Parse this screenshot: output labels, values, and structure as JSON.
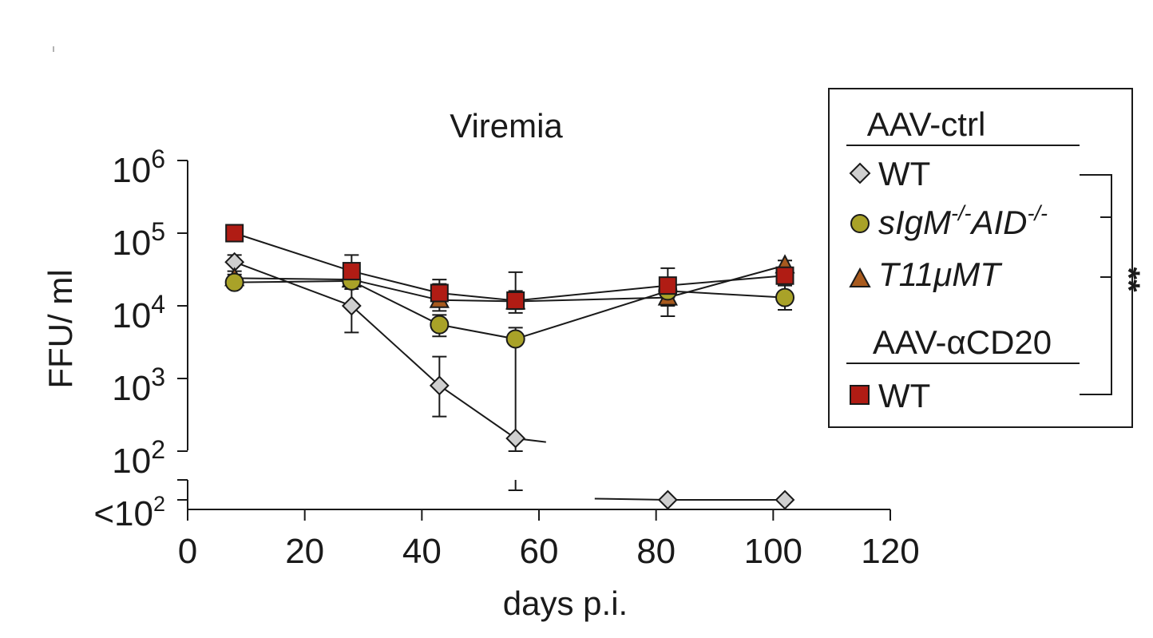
{
  "chart_data": {
    "type": "line",
    "title": "Viremia",
    "xlabel": "days p.i.",
    "ylabel": "FFU/ ml",
    "x_ticks": [
      "0",
      "20",
      "40",
      "60",
      "80",
      "100",
      "120"
    ],
    "xlim": [
      0,
      120
    ],
    "ylim_log10": [
      2,
      6
    ],
    "y_ticks": [
      {
        "value": 1000000,
        "base": "10",
        "exp": "6"
      },
      {
        "value": 100000,
        "base": "10",
        "exp": "5"
      },
      {
        "value": 10000,
        "base": "10",
        "exp": "4"
      },
      {
        "value": 1000,
        "base": "10",
        "exp": "3"
      },
      {
        "value": 100,
        "base": "10",
        "exp": "2"
      }
    ],
    "below_detection_label": {
      "prefix": "<10",
      "exp": "2"
    },
    "legend": {
      "group1_title": "AAV-ctrl",
      "group2_title": "AAV-αCD20",
      "significance": "**"
    },
    "series": [
      {
        "key": "wt_ctrl",
        "name": "WT",
        "group": "AAV-ctrl",
        "marker": "diamond",
        "color": "#cfcfcf",
        "x": [
          8,
          28,
          43,
          56,
          82,
          102
        ],
        "y": [
          40000,
          10000,
          800,
          150,
          "<100",
          "<100"
        ],
        "err_low": [
          30000,
          4300,
          300,
          "<100",
          "<100",
          null
        ],
        "err_high": [
          50000,
          17000,
          2000,
          null,
          "<100",
          null
        ]
      },
      {
        "key": "sigm_aid",
        "name_base": "sIgM",
        "name_sup1": "-/-",
        "name_mid": "AID",
        "name_sup2": "-/-",
        "group": "AAV-ctrl",
        "marker": "circle",
        "color": "#a9a228",
        "x": [
          8,
          28,
          43,
          56,
          82,
          102
        ],
        "y": [
          21000,
          22000,
          5500,
          3500,
          16000,
          13000
        ],
        "err_low": [
          20000,
          19000,
          3800,
          100,
          13000,
          8800
        ],
        "err_high": [
          23000,
          26000,
          7500,
          5000,
          19000,
          19000
        ]
      },
      {
        "key": "t11umt",
        "name": "T11μMT",
        "group": "AAV-ctrl",
        "marker": "triangle",
        "color": "#a85a1e",
        "x": [
          8,
          28,
          43,
          56,
          82,
          102
        ],
        "y": [
          24000,
          23000,
          12000,
          11500,
          13000,
          36000
        ],
        "err_low": [
          20000,
          19000,
          8500,
          9000,
          10000,
          30000
        ],
        "err_high": [
          27000,
          30000,
          20000,
          16000,
          16000,
          42000
        ]
      },
      {
        "key": "wt_cd20",
        "name": "WT",
        "group": "AAV-αCD20",
        "marker": "square",
        "color": "#b01c14",
        "x": [
          8,
          28,
          43,
          56,
          82,
          102
        ],
        "y": [
          100000,
          30000,
          15000,
          11800,
          19000,
          26000
        ],
        "err_low": [
          90000,
          25000,
          12000,
          8000,
          7200,
          20000
        ],
        "err_high": [
          110000,
          50000,
          23000,
          29000,
          33000,
          32000
        ]
      }
    ]
  }
}
